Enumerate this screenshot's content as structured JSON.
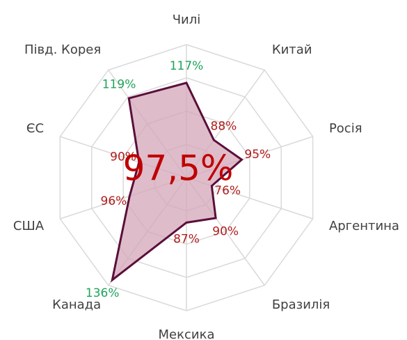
{
  "chart_data": {
    "type": "radar",
    "categories": [
      "Чилі",
      "Китай",
      "Росія",
      "Аргентина",
      "Бразилія",
      "Мексика",
      "Канада",
      "США",
      "ЄС",
      "Півд. Корея"
    ],
    "series": [
      {
        "color": "#d4a5b8",
        "stroke": "#5a0f3a",
        "values": [
          117,
          88,
          95,
          76,
          90,
          87,
          136,
          96,
          90,
          119
        ],
        "value_labels": [
          "117%",
          "88%",
          "95%",
          "76%",
          "90%",
          "87%",
          "136%",
          "96%",
          "90%",
          "119%"
        ],
        "label_colors": [
          "#1fa35a",
          "#b01c1c",
          "#b01c1c",
          "#b01c1c",
          "#b01c1c",
          "#b01c1c",
          "#1fa35a",
          "#b01c1c",
          "#b01c1c",
          "#1fa35a"
        ]
      }
    ],
    "rlim": [
      60,
      140
    ],
    "rticks": [
      60,
      80,
      100,
      120,
      140
    ],
    "annotation": "97,5%"
  }
}
